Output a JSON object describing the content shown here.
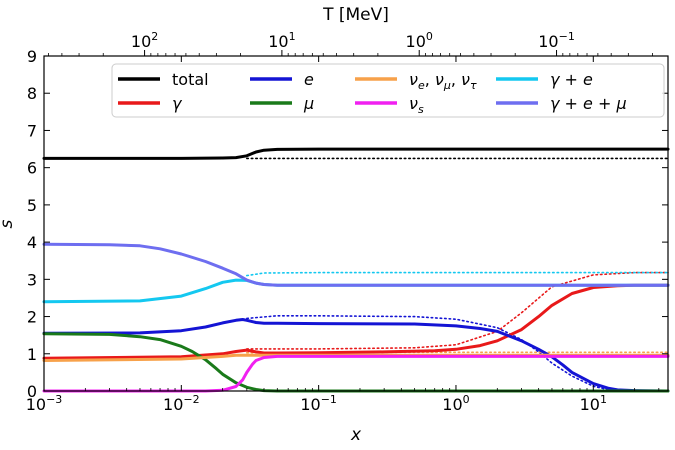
{
  "chart_data": {
    "type": "line",
    "xlabel": "x",
    "ylabel": "s",
    "top_axis_label": "T [MeV]",
    "x_scale": "log",
    "xlim": [
      0.001,
      35
    ],
    "ylim": [
      0,
      9
    ],
    "x_ticks": [
      {
        "value": 0.001,
        "base": "10",
        "exp": "−3"
      },
      {
        "value": 0.01,
        "base": "10",
        "exp": "−2"
      },
      {
        "value": 0.1,
        "base": "10",
        "exp": "−1"
      },
      {
        "value": 1,
        "base": "10",
        "exp": "0"
      },
      {
        "value": 10,
        "base": "10",
        "exp": "1"
      }
    ],
    "y_ticks": [
      "0",
      "1",
      "2",
      "3",
      "4",
      "5",
      "6",
      "7",
      "8",
      "9"
    ],
    "top_ticks": [
      {
        "x_value": 0.0054,
        "base": "10",
        "exp": "2"
      },
      {
        "x_value": 0.054,
        "base": "10",
        "exp": "1"
      },
      {
        "x_value": 0.54,
        "base": "10",
        "exp": "0"
      },
      {
        "x_value": 5.4,
        "base": "10",
        "exp": "−1"
      }
    ],
    "legend": [
      {
        "name": "total",
        "color": "#000000"
      },
      {
        "name": "γ",
        "color": "#e8191a"
      },
      {
        "name": "e",
        "color": "#1414d4"
      },
      {
        "name": "μ",
        "color": "#1a7a1a"
      },
      {
        "name": "νₑ, ν_μ, ν_τ",
        "color": "#f7a14a"
      },
      {
        "name": "ν_s",
        "color": "#f020f0"
      },
      {
        "name": "γ + e",
        "color": "#14c8f0"
      },
      {
        "name": "γ + e + μ",
        "color": "#6e6ef0"
      }
    ],
    "series": [
      {
        "name": "total",
        "color": "#000000",
        "style": "solid",
        "x": [
          0.001,
          0.01,
          0.02,
          0.025,
          0.03,
          0.035,
          0.04,
          0.05,
          0.1,
          1,
          10,
          35
        ],
        "y": [
          6.25,
          6.25,
          6.26,
          6.27,
          6.32,
          6.42,
          6.47,
          6.49,
          6.5,
          6.5,
          6.5,
          6.5
        ]
      },
      {
        "name": "total (dotted)",
        "color": "#000000",
        "style": "dotted",
        "x": [
          0.03,
          35
        ],
        "y": [
          6.25,
          6.25
        ]
      },
      {
        "name": "γ",
        "color": "#e8191a",
        "style": "solid",
        "x": [
          0.001,
          0.01,
          0.02,
          0.025,
          0.03,
          0.035,
          0.04,
          0.05,
          0.1,
          0.3,
          0.7,
          1,
          1.5,
          2,
          3,
          4,
          5,
          7,
          10,
          15,
          20,
          35
        ],
        "y": [
          0.88,
          0.92,
          1.0,
          1.06,
          1.1,
          1.05,
          1.02,
          1.02,
          1.03,
          1.05,
          1.08,
          1.12,
          1.22,
          1.35,
          1.65,
          2.0,
          2.3,
          2.62,
          2.78,
          2.83,
          2.84,
          2.84
        ]
      },
      {
        "name": "γ (dotted)",
        "color": "#e8191a",
        "style": "dotted",
        "x": [
          0.03,
          0.1,
          0.5,
          1,
          2,
          3,
          5,
          10,
          20,
          35
        ],
        "y": [
          1.13,
          1.13,
          1.16,
          1.24,
          1.6,
          2.1,
          2.8,
          3.12,
          3.18,
          3.18
        ]
      },
      {
        "name": "e",
        "color": "#1414d4",
        "style": "solid",
        "x": [
          0.001,
          0.005,
          0.01,
          0.015,
          0.02,
          0.025,
          0.028,
          0.03,
          0.035,
          0.04,
          0.05,
          0.1,
          0.5,
          1,
          1.5,
          2,
          3,
          4,
          5,
          6,
          7,
          10,
          13,
          15,
          20,
          35
        ],
        "y": [
          1.55,
          1.56,
          1.62,
          1.72,
          1.83,
          1.9,
          1.92,
          1.9,
          1.84,
          1.82,
          1.82,
          1.81,
          1.8,
          1.75,
          1.68,
          1.6,
          1.35,
          1.12,
          0.92,
          0.7,
          0.5,
          0.2,
          0.07,
          0.03,
          0.01,
          0.0
        ]
      },
      {
        "name": "e (dotted)",
        "color": "#1414d4",
        "style": "dotted",
        "x": [
          0.03,
          0.05,
          0.1,
          0.5,
          1,
          2,
          3,
          4,
          5,
          7,
          10,
          13,
          20,
          35
        ],
        "y": [
          1.95,
          2.02,
          2.02,
          2.0,
          1.93,
          1.7,
          1.38,
          1.05,
          0.75,
          0.4,
          0.13,
          0.03,
          0.0,
          0.0
        ]
      },
      {
        "name": "μ",
        "color": "#1a7a1a",
        "style": "solid",
        "x": [
          0.001,
          0.003,
          0.005,
          0.007,
          0.01,
          0.012,
          0.015,
          0.018,
          0.02,
          0.025,
          0.03,
          0.035,
          0.04,
          0.05,
          0.1,
          35
        ],
        "y": [
          1.54,
          1.52,
          1.46,
          1.38,
          1.2,
          1.06,
          0.84,
          0.6,
          0.45,
          0.22,
          0.1,
          0.04,
          0.01,
          0.0,
          0.0,
          0.0
        ]
      },
      {
        "name": "νₑ, ν_μ, ν_τ",
        "color": "#f7a14a",
        "style": "solid",
        "x": [
          0.001,
          0.01,
          0.02,
          0.025,
          0.03,
          0.04,
          0.1,
          35
        ],
        "y": [
          0.82,
          0.86,
          0.93,
          0.96,
          0.96,
          0.96,
          0.96,
          0.96
        ]
      },
      {
        "name": "νₑ, ν_μ, ν_τ (dotted)",
        "color": "#f7a14a",
        "style": "dotted",
        "x": [
          0.03,
          0.1,
          35
        ],
        "y": [
          1.03,
          1.04,
          1.04
        ]
      },
      {
        "name": "ν_s",
        "color": "#f020f0",
        "style": "solid",
        "x": [
          0.001,
          0.015,
          0.02,
          0.025,
          0.028,
          0.03,
          0.033,
          0.035,
          0.04,
          0.05,
          0.1,
          35
        ],
        "y": [
          0.0,
          0.0,
          0.02,
          0.12,
          0.3,
          0.5,
          0.72,
          0.82,
          0.9,
          0.93,
          0.93,
          0.93
        ]
      },
      {
        "name": "γ + e",
        "color": "#14c8f0",
        "style": "solid",
        "x": [
          0.001,
          0.005,
          0.01,
          0.015,
          0.02,
          0.025,
          0.03,
          0.035,
          0.04,
          0.05,
          0.1,
          1,
          35
        ],
        "y": [
          2.4,
          2.42,
          2.55,
          2.75,
          2.92,
          2.98,
          2.97,
          2.9,
          2.86,
          2.84,
          2.84,
          2.84,
          2.84
        ]
      },
      {
        "name": "γ + e (dotted)",
        "color": "#14c8f0",
        "style": "dotted",
        "x": [
          0.03,
          0.04,
          0.1,
          35
        ],
        "y": [
          3.1,
          3.17,
          3.18,
          3.18
        ]
      },
      {
        "name": "γ + e + μ",
        "color": "#6e6ef0",
        "style": "solid",
        "x": [
          0.001,
          0.003,
          0.005,
          0.007,
          0.01,
          0.015,
          0.02,
          0.025,
          0.03,
          0.035,
          0.04,
          0.05,
          0.1,
          35
        ],
        "y": [
          3.94,
          3.93,
          3.9,
          3.82,
          3.68,
          3.48,
          3.3,
          3.15,
          2.98,
          2.9,
          2.86,
          2.84,
          2.84,
          2.84
        ]
      }
    ]
  }
}
